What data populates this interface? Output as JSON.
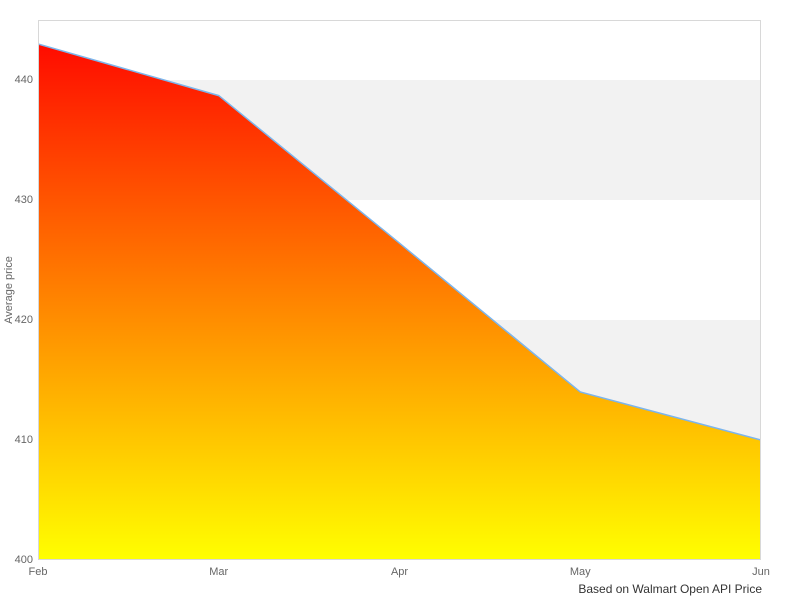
{
  "chart_data": {
    "type": "area",
    "x": [
      "Feb",
      "Mar",
      "Apr",
      "May",
      "Jun"
    ],
    "values": [
      443,
      438.7,
      426.4,
      414,
      410
    ],
    "title": "",
    "xlabel": "",
    "ylabel": "Average price",
    "caption": "Based on Walmart Open API Price",
    "ylim": [
      400,
      445
    ],
    "yticks": [
      400,
      410,
      420,
      430,
      440
    ],
    "legend": "none",
    "grid": "alternating-horizontal-bands",
    "colors": {
      "line": "#7cb5ec",
      "fill_top": "#ff0000",
      "fill_bottom": "#ffff00",
      "band_gray": "#f2f2f2",
      "band_white": "#ffffff",
      "plot_border": "#d8d8d8",
      "tick_label": "#666666",
      "caption_text": "#333333"
    }
  }
}
